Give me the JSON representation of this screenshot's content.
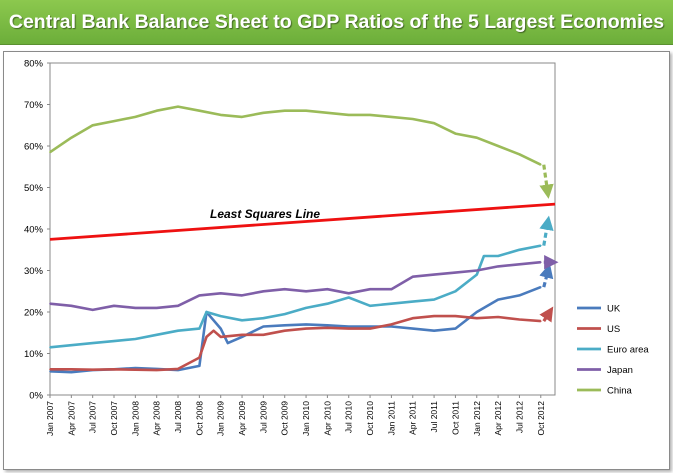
{
  "banner": {
    "title": "Central Bank Balance Sheet to GDP Ratios of the 5 Largest Economies"
  },
  "chart_data": {
    "type": "line",
    "title": "Central Bank Balance Sheet to GDP Ratios of the 5 Largest Economies",
    "xlabel": "",
    "ylabel": "",
    "ylim": [
      0,
      80
    ],
    "y_ticks": [
      "0%",
      "10%",
      "20%",
      "30%",
      "40%",
      "50%",
      "60%",
      "70%",
      "80%"
    ],
    "x_tick_labels": [
      "Jan 2007",
      "Apr 2007",
      "Jul 2007",
      "Oct 2007",
      "Jan 2008",
      "Apr 2008",
      "Jul 2008",
      "Oct 2008",
      "Jan 2009",
      "Apr 2009",
      "Jul 2009",
      "Oct 2009",
      "Jan 2010",
      "Apr 2010",
      "Jul 2010",
      "Oct 2010",
      "Jan 2011",
      "Apr 2011",
      "Jul 2011",
      "Oct 2011",
      "Jan 2012",
      "Apr 2012",
      "Jul 2012",
      "Oct 2012"
    ],
    "legend_position": "right",
    "grid": false,
    "annotation": "Least Squares Line",
    "least_squares_line": {
      "start": [
        "Jan 2007",
        37.5
      ],
      "end": [
        "Dec 2012",
        46
      ],
      "color": "#ee1111"
    },
    "series": [
      {
        "name": "UK",
        "color": "#4a7bbd",
        "points": [
          [
            "Jan 2007",
            5.7
          ],
          [
            "Apr 2007",
            5.5
          ],
          [
            "Jul 2007",
            6.0
          ],
          [
            "Oct 2007",
            6.2
          ],
          [
            "Jan 2008",
            6.5
          ],
          [
            "Apr 2008",
            6.3
          ],
          [
            "Jul 2008",
            6.0
          ],
          [
            "Oct 2008",
            7.0
          ],
          [
            "Nov 2008",
            20.0
          ],
          [
            "Dec 2008",
            18.0
          ],
          [
            "Jan 2009",
            16.0
          ],
          [
            "Feb 2009",
            12.5
          ],
          [
            "Apr 2009",
            14.0
          ],
          [
            "Jul 2009",
            16.5
          ],
          [
            "Oct 2009",
            16.8
          ],
          [
            "Jan 2010",
            17.0
          ],
          [
            "Apr 2010",
            16.8
          ],
          [
            "Jul 2010",
            16.5
          ],
          [
            "Oct 2010",
            16.5
          ],
          [
            "Jan 2011",
            16.5
          ],
          [
            "Apr 2011",
            16.0
          ],
          [
            "Jul 2011",
            15.5
          ],
          [
            "Oct 2011",
            16.0
          ],
          [
            "Jan 2012",
            20.0
          ],
          [
            "Apr 2012",
            23.0
          ],
          [
            "Jul 2012",
            24.0
          ],
          [
            "Oct 2012",
            26.0
          ]
        ],
        "projection_end": [
          "Dec 2012",
          29.0
        ]
      },
      {
        "name": "US",
        "color": "#c0504d",
        "points": [
          [
            "Jan 2007",
            6.2
          ],
          [
            "Apr 2007",
            6.2
          ],
          [
            "Jul 2007",
            6.1
          ],
          [
            "Oct 2007",
            6.2
          ],
          [
            "Jan 2008",
            6.1
          ],
          [
            "Apr 2008",
            6.0
          ],
          [
            "Jul 2008",
            6.3
          ],
          [
            "Oct 2008",
            9.0
          ],
          [
            "Nov 2008",
            14.0
          ],
          [
            "Dec 2008",
            15.5
          ],
          [
            "Jan 2009",
            14.0
          ],
          [
            "Apr 2009",
            14.5
          ],
          [
            "Jul 2009",
            14.5
          ],
          [
            "Oct 2009",
            15.5
          ],
          [
            "Jan 2010",
            16.0
          ],
          [
            "Apr 2010",
            16.2
          ],
          [
            "Jul 2010",
            16.0
          ],
          [
            "Oct 2010",
            16.0
          ],
          [
            "Jan 2011",
            17.0
          ],
          [
            "Apr 2011",
            18.5
          ],
          [
            "Jul 2011",
            19.0
          ],
          [
            "Oct 2011",
            19.0
          ],
          [
            "Jan 2012",
            18.5
          ],
          [
            "Apr 2012",
            18.8
          ],
          [
            "Jul 2012",
            18.2
          ],
          [
            "Oct 2012",
            17.8
          ]
        ],
        "projection_end": [
          "Dec 2012",
          19.0
        ]
      },
      {
        "name": "Euro area",
        "color": "#4bacc6",
        "points": [
          [
            "Jan 2007",
            11.5
          ],
          [
            "Apr 2007",
            12.0
          ],
          [
            "Jul 2007",
            12.5
          ],
          [
            "Oct 2007",
            13.0
          ],
          [
            "Jan 2008",
            13.5
          ],
          [
            "Apr 2008",
            14.5
          ],
          [
            "Jul 2008",
            15.5
          ],
          [
            "Oct 2008",
            16.0
          ],
          [
            "Nov 2008",
            20.0
          ],
          [
            "Jan 2009",
            19.0
          ],
          [
            "Apr 2009",
            18.0
          ],
          [
            "Jul 2009",
            18.5
          ],
          [
            "Oct 2009",
            19.5
          ],
          [
            "Jan 2010",
            21.0
          ],
          [
            "Apr 2010",
            22.0
          ],
          [
            "Jul 2010",
            23.5
          ],
          [
            "Oct 2010",
            21.5
          ],
          [
            "Jan 2011",
            22.0
          ],
          [
            "Apr 2011",
            22.5
          ],
          [
            "Jul 2011",
            23.0
          ],
          [
            "Oct 2011",
            25.0
          ],
          [
            "Jan 2012",
            29.0
          ],
          [
            "Feb 2012",
            33.5
          ],
          [
            "Apr 2012",
            33.5
          ],
          [
            "Jul 2012",
            35.0
          ],
          [
            "Oct 2012",
            36.0
          ]
        ],
        "projection_end": [
          "Dec 2012",
          40.5
        ]
      },
      {
        "name": "Japan",
        "color": "#7f5fa8",
        "points": [
          [
            "Jan 2007",
            22.0
          ],
          [
            "Apr 2007",
            21.5
          ],
          [
            "Jul 2007",
            20.5
          ],
          [
            "Oct 2007",
            21.5
          ],
          [
            "Jan 2008",
            21.0
          ],
          [
            "Apr 2008",
            21.0
          ],
          [
            "Jul 2008",
            21.5
          ],
          [
            "Oct 2008",
            24.0
          ],
          [
            "Jan 2009",
            24.5
          ],
          [
            "Apr 2009",
            24.0
          ],
          [
            "Jul 2009",
            25.0
          ],
          [
            "Oct 2009",
            25.5
          ],
          [
            "Jan 2010",
            25.0
          ],
          [
            "Apr 2010",
            25.5
          ],
          [
            "Jul 2010",
            24.5
          ],
          [
            "Oct 2010",
            25.5
          ],
          [
            "Jan 2011",
            25.5
          ],
          [
            "Apr 2011",
            28.5
          ],
          [
            "Jul 2011",
            29.0
          ],
          [
            "Oct 2011",
            29.5
          ],
          [
            "Jan 2012",
            30.0
          ],
          [
            "Apr 2012",
            31.0
          ],
          [
            "Jul 2012",
            31.5
          ],
          [
            "Oct 2012",
            32.0
          ]
        ],
        "projection_end": [
          "Dec 2012",
          32.0
        ]
      },
      {
        "name": "China",
        "color": "#9bbb59",
        "points": [
          [
            "Jan 2007",
            58.5
          ],
          [
            "Apr 2007",
            62.0
          ],
          [
            "Jul 2007",
            65.0
          ],
          [
            "Oct 2007",
            66.0
          ],
          [
            "Jan 2008",
            67.0
          ],
          [
            "Apr 2008",
            68.5
          ],
          [
            "Jul 2008",
            69.5
          ],
          [
            "Oct 2008",
            68.5
          ],
          [
            "Jan 2009",
            67.5
          ],
          [
            "Apr 2009",
            67.0
          ],
          [
            "Jul 2009",
            68.0
          ],
          [
            "Oct 2009",
            68.5
          ],
          [
            "Jan 2010",
            68.5
          ],
          [
            "Apr 2010",
            68.0
          ],
          [
            "Jul 2010",
            67.5
          ],
          [
            "Oct 2010",
            67.5
          ],
          [
            "Jan 2011",
            67.0
          ],
          [
            "Apr 2011",
            66.5
          ],
          [
            "Jul 2011",
            65.5
          ],
          [
            "Oct 2011",
            63.0
          ],
          [
            "Jan 2012",
            62.0
          ],
          [
            "Apr 2012",
            60.0
          ],
          [
            "Jul 2012",
            58.0
          ],
          [
            "Oct 2012",
            55.5
          ]
        ],
        "projection_end": [
          "Dec 2012",
          50.0
        ]
      }
    ]
  }
}
